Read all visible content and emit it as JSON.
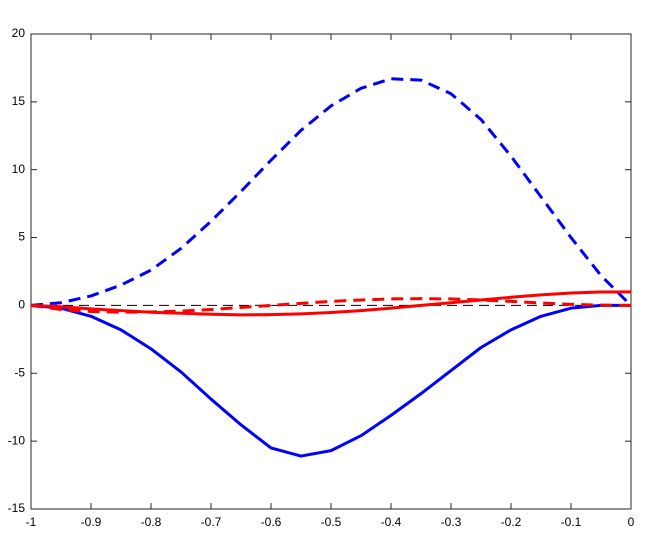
{
  "chart_data": {
    "type": "line",
    "x": [
      -1,
      -0.95,
      -0.9,
      -0.85,
      -0.8,
      -0.75,
      -0.7,
      -0.65,
      -0.6,
      -0.55,
      -0.5,
      -0.45,
      -0.4,
      -0.35,
      -0.3,
      -0.25,
      -0.2,
      -0.15,
      -0.1,
      -0.05,
      0
    ],
    "series": [
      {
        "color": "#000000",
        "linestyle": "dashed",
        "linewidth": 1,
        "values": [
          0,
          0,
          0,
          0,
          0,
          0,
          0,
          0,
          0,
          0,
          0,
          0,
          0,
          0,
          0,
          0,
          0,
          0,
          0,
          0,
          0
        ]
      },
      {
        "color": "#0000ff",
        "linestyle": "dashed",
        "linewidth": 3,
        "values": [
          0,
          0.2,
          0.7,
          1.5,
          2.6,
          4.2,
          6.2,
          8.4,
          10.7,
          12.9,
          14.7,
          16.0,
          16.7,
          16.6,
          15.6,
          13.7,
          11.0,
          8.0,
          5.0,
          2.2,
          0
        ]
      },
      {
        "color": "#0000ff",
        "linestyle": "solid",
        "linewidth": 3,
        "values": [
          0,
          -0.2,
          -0.8,
          -1.8,
          -3.2,
          -4.9,
          -6.9,
          -8.8,
          -10.5,
          -11.1,
          -10.7,
          -9.6,
          -8.1,
          -6.5,
          -4.8,
          -3.1,
          -1.8,
          -0.8,
          -0.2,
          0,
          0
        ]
      },
      {
        "color": "#ff0000",
        "linestyle": "dashed",
        "linewidth": 3,
        "values": [
          0,
          -0.3,
          -0.45,
          -0.5,
          -0.48,
          -0.42,
          -0.3,
          -0.15,
          0,
          0.15,
          0.3,
          0.4,
          0.48,
          0.5,
          0.48,
          0.4,
          0.3,
          0.18,
          0.08,
          0.02,
          0
        ]
      },
      {
        "color": "#ff0000",
        "linestyle": "solid",
        "linewidth": 3,
        "values": [
          0,
          -0.1,
          -0.25,
          -0.38,
          -0.5,
          -0.58,
          -0.65,
          -0.7,
          -0.68,
          -0.62,
          -0.52,
          -0.38,
          -0.2,
          0,
          0.2,
          0.4,
          0.6,
          0.78,
          0.92,
          0.99,
          1.0
        ]
      }
    ],
    "xlim": [
      -1,
      0
    ],
    "xticks": [
      -1,
      -0.9,
      -0.8,
      -0.7,
      -0.6,
      -0.5,
      -0.4,
      -0.3,
      -0.2,
      -0.1,
      0
    ],
    "ylim": [
      -15,
      20
    ],
    "yticks": [
      -15,
      -10,
      -5,
      0,
      5,
      10,
      15,
      20
    ],
    "grid": false
  }
}
